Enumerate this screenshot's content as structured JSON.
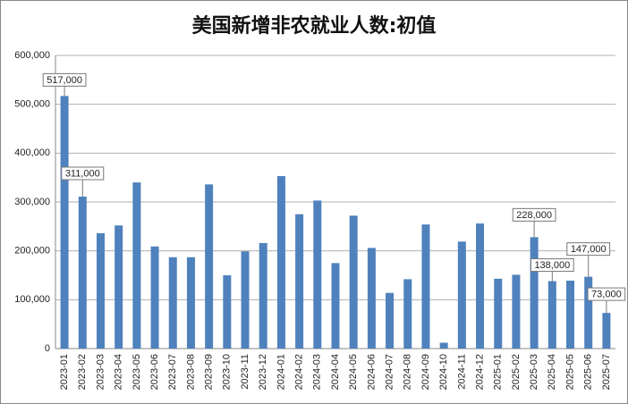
{
  "chart_data": {
    "type": "bar",
    "title": "美国新增非农就业人数:初值",
    "categories": [
      "2023-01",
      "2023-02",
      "2023-03",
      "2023-04",
      "2023-05",
      "2023-06",
      "2023-07",
      "2023-08",
      "2023-09",
      "2023-10",
      "2023-11",
      "2023-12",
      "2024-01",
      "2024-02",
      "2024-03",
      "2024-04",
      "2024-05",
      "2024-06",
      "2024-07",
      "2024-08",
      "2024-09",
      "2024-10",
      "2024-11",
      "2024-12",
      "2025-01",
      "2025-02",
      "2025-03",
      "2025-04",
      "2025-05",
      "2025-06",
      "2025-07"
    ],
    "values": [
      517000,
      311000,
      236000,
      252000,
      340000,
      209000,
      187000,
      187000,
      336000,
      150000,
      199000,
      216000,
      353000,
      275000,
      303000,
      175000,
      272000,
      206000,
      114000,
      142000,
      254000,
      12000,
      219000,
      256000,
      143000,
      151000,
      228000,
      138000,
      139000,
      147000,
      73000
    ],
    "value_labels": [
      "517,000",
      "311,000",
      null,
      null,
      null,
      null,
      null,
      null,
      null,
      null,
      null,
      null,
      null,
      null,
      null,
      null,
      null,
      null,
      null,
      null,
      null,
      null,
      null,
      null,
      null,
      null,
      "228,000",
      "138,000",
      null,
      "147,000",
      "73,000"
    ],
    "color": "#4f81bd",
    "ylim": [
      0,
      600000
    ],
    "yticks": [
      0,
      {
        "value": 100000,
        "label": "100,000"
      },
      {
        "value": 200000,
        "label": "200,000"
      },
      {
        "value": 300000,
        "label": "300,000"
      },
      {
        "value": 400000,
        "label": "400,000"
      },
      {
        "value": 500000,
        "label": "500,000"
      },
      {
        "value": 600000,
        "label": "600,000"
      }
    ],
    "grid": true
  }
}
